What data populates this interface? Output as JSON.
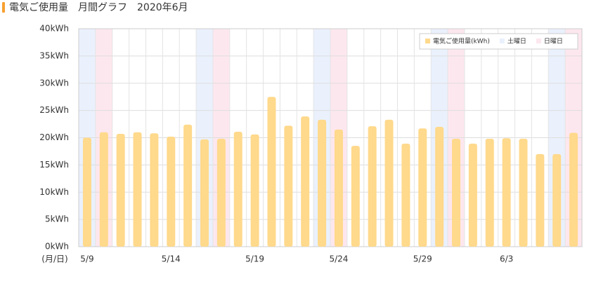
{
  "chart_data": {
    "type": "bar",
    "title": "電気ご使用量　月間グラフ　2020年6月",
    "x_label": "(月/日)",
    "categories": [
      "5/9",
      null,
      null,
      null,
      null,
      "5/14",
      null,
      null,
      null,
      null,
      "5/19",
      null,
      null,
      null,
      null,
      "5/24",
      null,
      null,
      null,
      null,
      "5/29",
      null,
      null,
      null,
      null,
      "6/3",
      null,
      null,
      null,
      null
    ],
    "series": [
      {
        "name": "電気ご使用量(kWh)",
        "color": "#ffd98c",
        "values": [
          20,
          21,
          20.7,
          21,
          20.8,
          20.2,
          22.4,
          19.7,
          19.8,
          21.1,
          20.6,
          27.5,
          22.2,
          23.9,
          23.3,
          21.5,
          18.5,
          22.1,
          23.3,
          18.9,
          21.7,
          22,
          19.8,
          18.9,
          19.8,
          19.9,
          19.8,
          17,
          17,
          20.9
        ]
      },
      {
        "name": "土曜日",
        "color": "#eaf1fd",
        "values": [
          40,
          null,
          null,
          null,
          null,
          null,
          null,
          40,
          null,
          null,
          null,
          null,
          null,
          null,
          40,
          null,
          null,
          null,
          null,
          null,
          null,
          40,
          null,
          null,
          null,
          null,
          null,
          null,
          40,
          null
        ]
      },
      {
        "name": "日曜日",
        "color": "#fde7ee",
        "values": [
          null,
          40,
          null,
          null,
          null,
          null,
          null,
          null,
          40,
          null,
          null,
          null,
          null,
          null,
          null,
          40,
          null,
          null,
          null,
          null,
          null,
          null,
          40,
          null,
          null,
          null,
          null,
          null,
          null,
          40
        ]
      }
    ],
    "ylim": [
      0,
      40
    ],
    "yticks": [
      {
        "value": 0,
        "label": "0kWh"
      },
      {
        "value": 5,
        "label": "5kWh"
      },
      {
        "value": 10,
        "label": "10kWh"
      },
      {
        "value": 15,
        "label": "15kWh"
      },
      {
        "value": 20,
        "label": "20kWh"
      },
      {
        "value": 25,
        "label": "25kWh"
      },
      {
        "value": 30,
        "label": "30kWh"
      },
      {
        "value": 35,
        "label": "35kWh"
      },
      {
        "value": 40,
        "label": "40kWh"
      }
    ],
    "grid": true
  }
}
